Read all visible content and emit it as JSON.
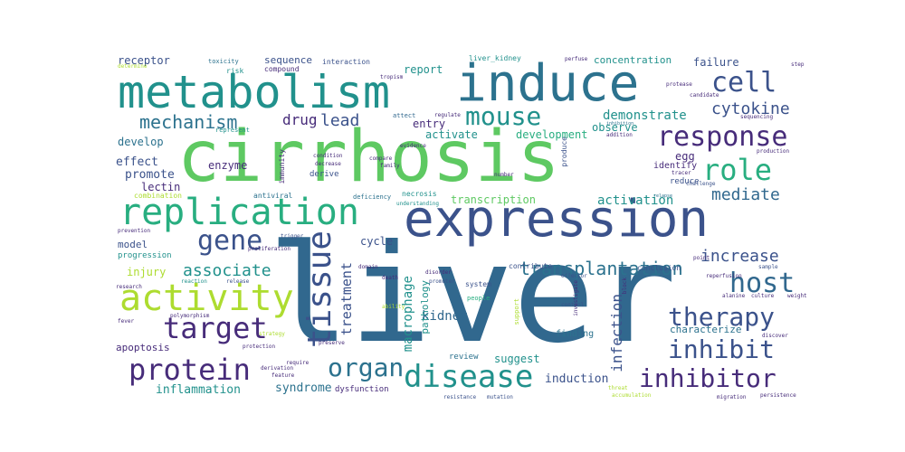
{
  "palette": {
    "navy": "#472c7a",
    "indigo": "#3b528b",
    "blue": "#31688e",
    "teal": "#2c728e",
    "cyan": "#21918c",
    "sea": "#28ae80",
    "green": "#5ec962",
    "lime": "#addc30",
    "yellow": "#fde725",
    "purple": "#440154"
  },
  "words": [
    {
      "id": "liver",
      "text": "liver"
    },
    {
      "id": "cirrhosis",
      "text": "cirrhosis"
    },
    {
      "id": "expression",
      "text": "expression"
    },
    {
      "id": "metabolism",
      "text": "metabolism"
    },
    {
      "id": "induce",
      "text": "induce"
    },
    {
      "id": "replication",
      "text": "replication"
    },
    {
      "id": "activity",
      "text": "activity"
    },
    {
      "id": "mouse",
      "text": "mouse"
    },
    {
      "id": "cell",
      "text": "cell"
    },
    {
      "id": "response",
      "text": "response"
    },
    {
      "id": "role",
      "text": "role"
    },
    {
      "id": "gene",
      "text": "gene"
    },
    {
      "id": "target",
      "text": "target"
    },
    {
      "id": "protein",
      "text": "protein"
    },
    {
      "id": "tissue",
      "text": "tissue"
    },
    {
      "id": "disease",
      "text": "disease"
    },
    {
      "id": "inhibitor",
      "text": "inhibitor"
    },
    {
      "id": "inhibit",
      "text": "inhibit"
    },
    {
      "id": "host",
      "text": "host"
    },
    {
      "id": "therapy",
      "text": "therapy"
    },
    {
      "id": "organ",
      "text": "organ"
    },
    {
      "id": "mechanism",
      "text": "mechanism"
    },
    {
      "id": "associate",
      "text": "associate"
    },
    {
      "id": "transplantation",
      "text": "transplantation"
    },
    {
      "id": "cytokine",
      "text": "cytokine"
    },
    {
      "id": "mediate",
      "text": "mediate"
    },
    {
      "id": "increase",
      "text": "increase"
    },
    {
      "id": "lead",
      "text": "lead"
    },
    {
      "id": "drug",
      "text": "drug"
    },
    {
      "id": "demonstrate",
      "text": "demonstrate"
    },
    {
      "id": "treatment",
      "text": "treatment"
    },
    {
      "id": "infection",
      "text": "infection"
    },
    {
      "id": "kidney",
      "text": "kidney"
    },
    {
      "id": "macrophage",
      "text": "macrophage"
    },
    {
      "id": "activation",
      "text": "activation"
    },
    {
      "id": "inflammation",
      "text": "inflammation"
    },
    {
      "id": "syndrome",
      "text": "syndrome"
    },
    {
      "id": "induction",
      "text": "induction"
    },
    {
      "id": "receptor",
      "text": "receptor"
    },
    {
      "id": "failure",
      "text": "failure"
    },
    {
      "id": "concentration",
      "text": "concentration"
    },
    {
      "id": "development",
      "text": "development"
    },
    {
      "id": "activate",
      "text": "activate"
    },
    {
      "id": "entry",
      "text": "entry"
    },
    {
      "id": "observe",
      "text": "observe"
    },
    {
      "id": "effect",
      "text": "effect"
    },
    {
      "id": "promote",
      "text": "promote"
    },
    {
      "id": "lectin",
      "text": "lectin"
    },
    {
      "id": "develop",
      "text": "develop"
    },
    {
      "id": "enzyme",
      "text": "enzyme"
    },
    {
      "id": "egg",
      "text": "egg"
    },
    {
      "id": "identify",
      "text": "identify"
    },
    {
      "id": "reduce",
      "text": "reduce"
    },
    {
      "id": "transcription",
      "text": "transcription"
    },
    {
      "id": "report",
      "text": "report"
    },
    {
      "id": "sequence",
      "text": "sequence"
    },
    {
      "id": "compound",
      "text": "compound"
    },
    {
      "id": "interaction",
      "text": "interaction"
    },
    {
      "id": "liver_kidney",
      "text": "liver_kidney"
    },
    {
      "id": "toxicity",
      "text": "toxicity"
    },
    {
      "id": "risk",
      "text": "risk"
    },
    {
      "id": "model",
      "text": "model"
    },
    {
      "id": "injury",
      "text": "injury"
    },
    {
      "id": "progression",
      "text": "progression"
    },
    {
      "id": "apoptosis",
      "text": "apoptosis"
    },
    {
      "id": "cycle",
      "text": "cycle"
    },
    {
      "id": "pathology",
      "text": "pathology"
    },
    {
      "id": "suggest",
      "text": "suggest"
    },
    {
      "id": "review",
      "text": "review"
    },
    {
      "id": "finding",
      "text": "finding"
    },
    {
      "id": "characterize",
      "text": "characterize"
    },
    {
      "id": "conclusion",
      "text": "conclusion"
    },
    {
      "id": "dysfunction",
      "text": "dysfunction"
    },
    {
      "id": "necrosis",
      "text": "necrosis"
    },
    {
      "id": "derive",
      "text": "derive"
    },
    {
      "id": "antiviral",
      "text": "antiviral"
    },
    {
      "id": "combination",
      "text": "combination"
    },
    {
      "id": "immunity",
      "text": "immunity"
    },
    {
      "id": "represent",
      "text": "represent"
    },
    {
      "id": "deficiency",
      "text": "deficiency"
    },
    {
      "id": "system",
      "text": "system"
    },
    {
      "id": "people",
      "text": "people"
    },
    {
      "id": "contribute",
      "text": "contribute"
    },
    {
      "id": "support",
      "text": "support"
    },
    {
      "id": "produce",
      "text": "produce"
    },
    {
      "id": "perfuse",
      "text": "perfuse"
    },
    {
      "id": "regulate",
      "text": "regulate"
    },
    {
      "id": "attect",
      "text": "attect"
    },
    {
      "id": "determine",
      "text": "determine"
    },
    {
      "id": "sequencing",
      "text": "sequencing"
    },
    {
      "id": "addition",
      "text": "addition"
    },
    {
      "id": "inhibition",
      "text": "inhibition"
    },
    {
      "id": "challenge",
      "text": "challenge"
    },
    {
      "id": "relapse",
      "text": "relapse"
    },
    {
      "id": "reperfusion",
      "text": "reperfusion"
    },
    {
      "id": "sample",
      "text": "sample"
    },
    {
      "id": "culture",
      "text": "culture"
    },
    {
      "id": "weight",
      "text": "weight"
    },
    {
      "id": "alanine",
      "text": "alanine"
    },
    {
      "id": "discover",
      "text": "discover"
    },
    {
      "id": "protection",
      "text": "protection"
    },
    {
      "id": "strategy",
      "text": "strategy"
    },
    {
      "id": "polymorphism",
      "text": "polymorphism"
    },
    {
      "id": "research",
      "text": "research"
    },
    {
      "id": "reaction",
      "text": "reaction"
    },
    {
      "id": "release",
      "text": "release"
    },
    {
      "id": "fever",
      "text": "fever"
    },
    {
      "id": "prevention",
      "text": "prevention"
    },
    {
      "id": "trigger",
      "text": "trigger"
    },
    {
      "id": "proliferation",
      "text": "proliferation"
    },
    {
      "id": "domain",
      "text": "domain"
    },
    {
      "id": "death",
      "text": "death"
    },
    {
      "id": "mutation",
      "text": "mutation"
    },
    {
      "id": "resistance",
      "text": "resistance"
    },
    {
      "id": "accumulation",
      "text": "accumulation"
    },
    {
      "id": "migration",
      "text": "migration"
    },
    {
      "id": "persistence",
      "text": "persistence"
    },
    {
      "id": "compare",
      "text": "compare"
    },
    {
      "id": "family",
      "text": "family"
    },
    {
      "id": "evidence",
      "text": "evidence"
    },
    {
      "id": "tropism",
      "text": "tropism"
    },
    {
      "id": "understanding",
      "text": "understanding"
    },
    {
      "id": "promoter",
      "text": "promoter"
    },
    {
      "id": "disorder",
      "text": "disorder"
    },
    {
      "id": "control",
      "text": "control"
    },
    {
      "id": "investigate",
      "text": "investigate"
    },
    {
      "id": "effector",
      "text": "effector"
    },
    {
      "id": "condition",
      "text": "condition"
    },
    {
      "id": "decrease",
      "text": "decrease"
    },
    {
      "id": "require",
      "text": "require"
    },
    {
      "id": "derivation",
      "text": "derivation"
    },
    {
      "id": "feature",
      "text": "feature"
    },
    {
      "id": "preserve",
      "text": "preserve"
    },
    {
      "id": "candidate",
      "text": "candidate"
    },
    {
      "id": "protease",
      "text": "protease"
    },
    {
      "id": "production",
      "text": "production"
    },
    {
      "id": "step",
      "text": "step"
    },
    {
      "id": "number",
      "text": "number"
    },
    {
      "id": "tracer",
      "text": "tracer"
    },
    {
      "id": "threat",
      "text": "threat"
    },
    {
      "id": "ability",
      "text": "ability"
    },
    {
      "id": "block",
      "text": "block"
    },
    {
      "id": "point",
      "text": "point"
    }
  ]
}
